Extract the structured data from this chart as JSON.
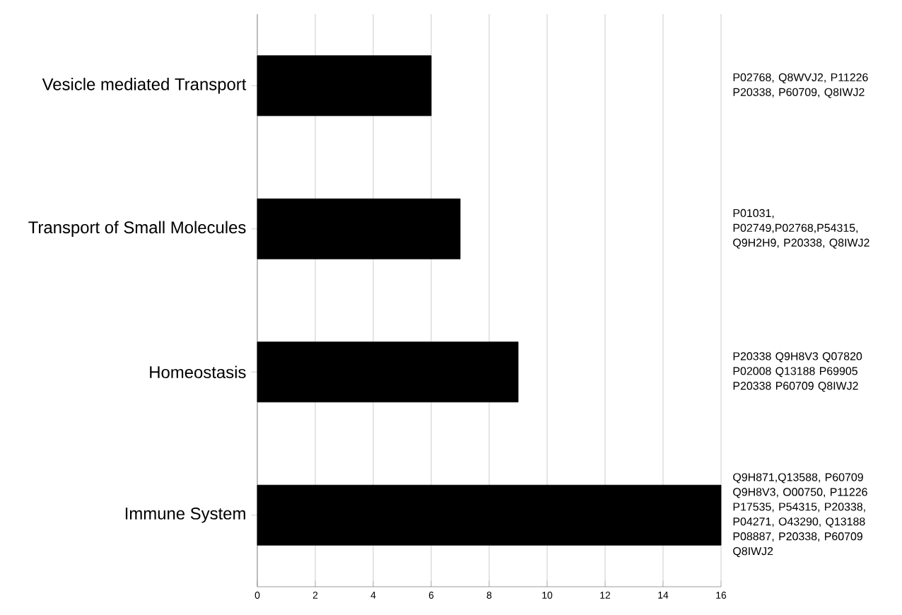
{
  "chart_data": {
    "type": "bar",
    "orientation": "horizontal",
    "categories": [
      "Vesicle mediated Transport",
      "Transport of Small Molecules",
      "Homeostasis",
      "Immune System"
    ],
    "values": [
      6,
      7,
      9,
      16
    ],
    "color": "#000000",
    "xlim": [
      0,
      16
    ],
    "xticks": [
      0,
      2,
      4,
      6,
      8,
      10,
      12,
      14,
      16
    ],
    "grid": "x",
    "annotations": [
      "P02768, Q8WVJ2, P11226 P20338, P60709, Q8IWJ2",
      "P01031, P02749,P02768,P54315, Q9H2H9, P20338, Q8IWJ2",
      "P20338 Q9H8V3 Q07820 P02008 Q13188 P69905 P20338 P60709 Q8IWJ2",
      "Q9H871,Q13588, P60709 Q9H8V3, O00750, P11226 P17535, P54315, P20338, P04271, O43290, Q13188 P08887, P20338, P60709 Q8IWJ2"
    ]
  }
}
